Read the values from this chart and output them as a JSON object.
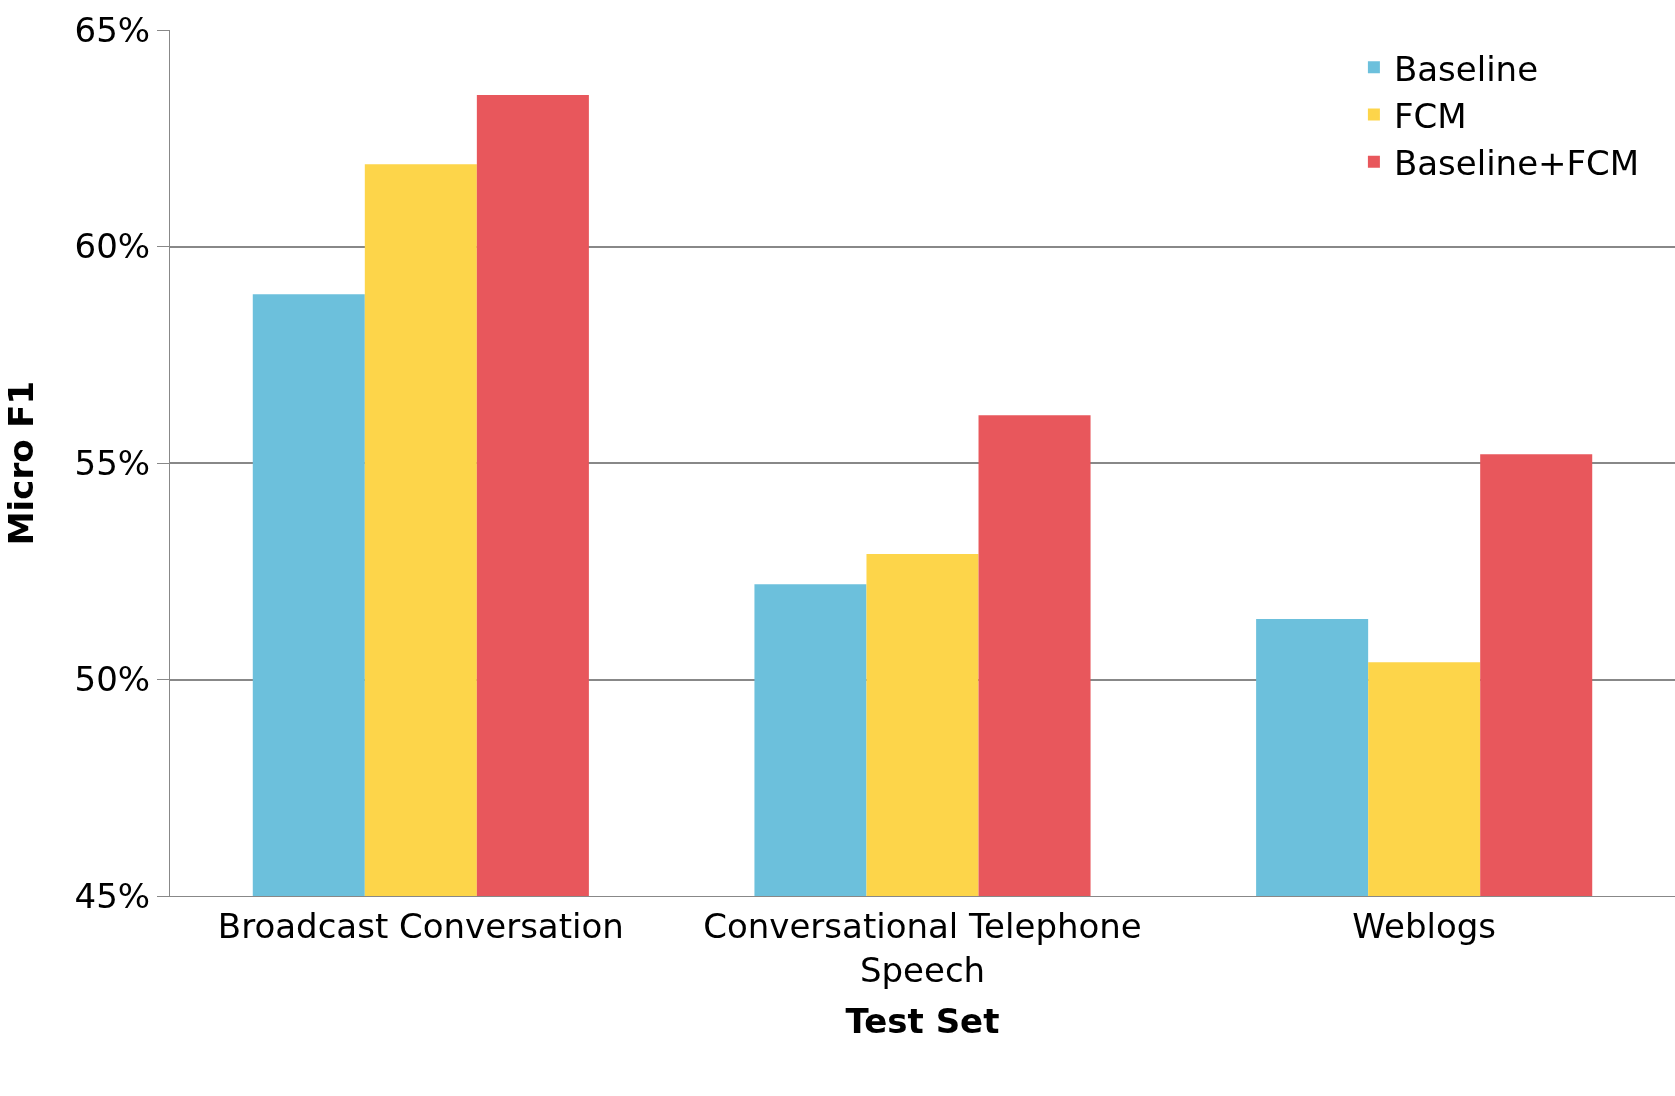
{
  "chart_data": {
    "type": "bar",
    "xlabel": "Test Set",
    "ylabel": "Micro F1",
    "categories": [
      "Broadcast Conversation",
      "Conversational Telephone Speech",
      "Weblogs"
    ],
    "series": [
      {
        "name": "Baseline",
        "color": "#6cc0dc",
        "values": [
          58.9,
          52.2,
          51.4
        ]
      },
      {
        "name": "FCM",
        "color": "#fdd54a",
        "values": [
          61.9,
          52.9,
          50.4
        ]
      },
      {
        "name": "Baseline+FCM",
        "color": "#e8575c",
        "values": [
          63.5,
          56.1,
          55.2
        ]
      }
    ],
    "ylim": [
      45,
      65
    ],
    "yticks": [
      {
        "value": 45,
        "label": "45%"
      },
      {
        "value": 50,
        "label": "50%"
      },
      {
        "value": 55,
        "label": "55%"
      },
      {
        "value": 60,
        "label": "60%"
      },
      {
        "value": 65,
        "label": "65%"
      }
    ],
    "grid": "y",
    "legend": "top right"
  }
}
